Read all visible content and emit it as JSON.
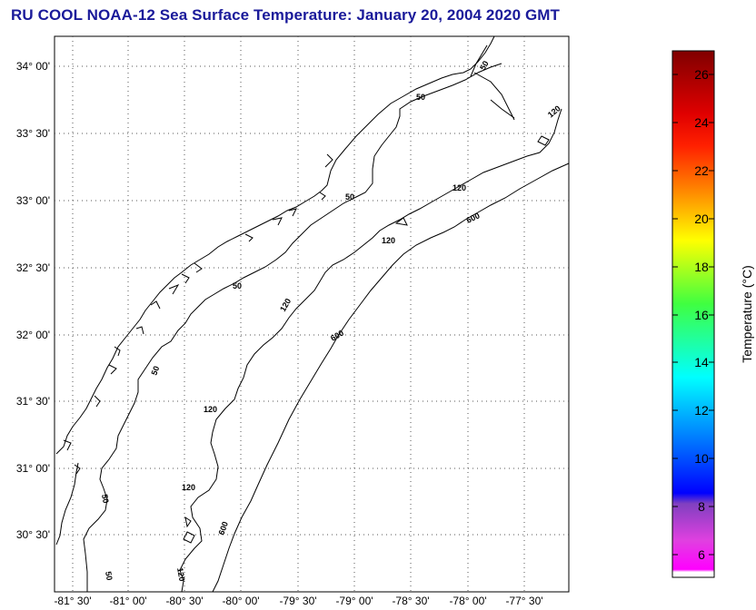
{
  "title": "RU COOL  NOAA-12  Sea Surface Temperature:  January 20, 2004 2020 GMT",
  "map": {
    "lat_ticks": [
      "34° 00'",
      "33° 30'",
      "33° 00'",
      "32° 30'",
      "32° 00'",
      "31° 30'",
      "31° 00'",
      "30° 30'"
    ],
    "lon_ticks": [
      "-81° 30'",
      "-81° 00'",
      "-80° 30'",
      "-80° 00'",
      "-79° 30'",
      "-79° 00'",
      "-78° 30'",
      "-78° 00'",
      "-77° 30'"
    ],
    "contour_labels": [
      "50",
      "50",
      "50",
      "50",
      "50",
      "50",
      "50",
      "120",
      "120",
      "120",
      "120",
      "120",
      "120",
      "120",
      "600",
      "600",
      "600"
    ],
    "grid": "dotted",
    "frame_color": "#000000"
  },
  "colorbar": {
    "title": "Temperature (°C)",
    "ticks": [
      "26",
      "24",
      "22",
      "20",
      "18",
      "16",
      "14",
      "12",
      "10",
      "8",
      "6"
    ],
    "range": [
      5,
      27
    ],
    "colors": {
      "top": "#800000",
      "red": "#ff0000",
      "orange": "#ff8000",
      "yellow": "#ffff00",
      "green": "#00ff00",
      "cyan": "#00ffff",
      "blue": "#0000ff",
      "purple": "#8040c0",
      "magenta": "#ff00ff",
      "bottom": "#ffffff"
    }
  }
}
